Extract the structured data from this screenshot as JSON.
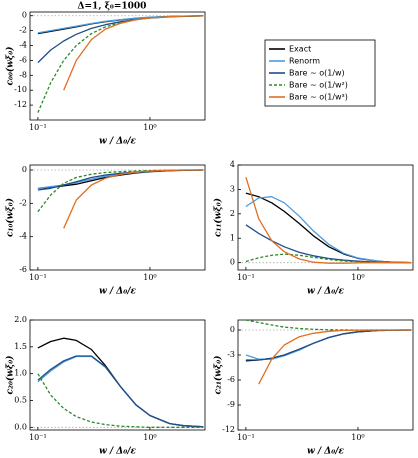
{
  "chart_data": [
    {
      "type": "line",
      "title": "Δ=1, ξ₀=1000",
      "y_label": "c₀₀(wξ₀)",
      "x_label": "w / Δ₀/ε",
      "x": [
        0.1,
        0.13,
        0.17,
        0.22,
        0.3,
        0.4,
        0.55,
        0.75,
        1,
        1.5,
        2,
        3
      ],
      "xlim": [
        0.085,
        3.1
      ],
      "xticks": [
        {
          "value": 0.1,
          "label": "10⁻¹"
        },
        {
          "value": 1,
          "label": "10⁰"
        }
      ],
      "xscale": "log",
      "ylim": [
        -14,
        0.5
      ],
      "yticks": [
        0,
        -2,
        -4,
        -6,
        -8,
        -10,
        -12
      ],
      "reference_line": 0,
      "series": [
        {
          "name": "Exact",
          "color": "#000000",
          "values": [
            -2.4,
            -2.1,
            -1.8,
            -1.5,
            -1.1,
            -0.8,
            -0.55,
            -0.35,
            -0.22,
            -0.1,
            -0.05,
            -0.02
          ]
        },
        {
          "name": "Renorm",
          "color": "#4a9be0",
          "values": [
            -2.3,
            -2.0,
            -1.7,
            -1.4,
            -1.05,
            -0.75,
            -0.52,
            -0.33,
            -0.2,
            -0.09,
            -0.05,
            -0.02
          ]
        },
        {
          "name": "Bare ~ o(1/w)",
          "color": "#1f4e8c",
          "values": [
            -6.3,
            -4.6,
            -3.4,
            -2.5,
            -1.7,
            -1.2,
            -0.8,
            -0.5,
            -0.32,
            -0.15,
            -0.08,
            -0.03
          ]
        },
        {
          "name": "Bare ~ o(1/w²)",
          "color": "#2a8a2a",
          "dash": true,
          "values": [
            -13,
            -9,
            -6,
            -4,
            -2.4,
            -1.5,
            -0.9,
            -0.5,
            -0.3,
            -0.12,
            -0.06,
            -0.02
          ]
        },
        {
          "name": "Bare ~ o(1/w³)",
          "color": "#e07020",
          "values": [
            null,
            null,
            -10,
            -6,
            -3.2,
            -1.8,
            -1.0,
            -0.55,
            -0.3,
            -0.12,
            -0.05,
            -0.02
          ]
        }
      ]
    },
    {
      "type": "line",
      "y_label": "c₁₀(wξ₀)",
      "x_label": "w / Δ₀/ε",
      "x": [
        0.1,
        0.13,
        0.17,
        0.22,
        0.3,
        0.4,
        0.55,
        0.75,
        1,
        1.5,
        2,
        3
      ],
      "xlim": [
        0.085,
        3.1
      ],
      "xticks": [
        {
          "value": 0.1,
          "label": "10⁻¹"
        },
        {
          "value": 1,
          "label": "10⁰"
        }
      ],
      "xscale": "log",
      "ylim": [
        -6,
        0.3
      ],
      "yticks": [
        0,
        -2,
        -4,
        -6
      ],
      "reference_line": 0,
      "series": [
        {
          "color": "#000000",
          "values": [
            -1.1,
            -1.05,
            -0.95,
            -0.85,
            -0.65,
            -0.45,
            -0.3,
            -0.18,
            -0.1,
            -0.04,
            -0.02,
            0
          ]
        },
        {
          "color": "#4a9be0",
          "values": [
            -1.1,
            -1.0,
            -0.9,
            -0.75,
            -0.55,
            -0.38,
            -0.25,
            -0.15,
            -0.08,
            -0.03,
            -0.01,
            0
          ]
        },
        {
          "color": "#1f4e8c",
          "values": [
            -1.2,
            -1.1,
            -0.9,
            -0.7,
            -0.45,
            -0.3,
            -0.2,
            -0.12,
            -0.07,
            -0.03,
            -0.01,
            0
          ]
        },
        {
          "color": "#2a8a2a",
          "dash": true,
          "values": [
            -2.5,
            -1.5,
            -0.8,
            -0.45,
            -0.25,
            -0.15,
            -0.1,
            -0.06,
            -0.03,
            -0.01,
            0,
            0
          ]
        },
        {
          "color": "#e07020",
          "values": [
            null,
            null,
            -3.5,
            -1.8,
            -0.9,
            -0.5,
            -0.25,
            -0.12,
            -0.06,
            -0.02,
            0,
            0
          ]
        }
      ]
    },
    {
      "type": "line",
      "y_label": "c₁₁(wξ₀)",
      "x_label": "w / Δ₀/ε",
      "x": [
        0.1,
        0.13,
        0.17,
        0.22,
        0.3,
        0.4,
        0.55,
        0.75,
        1,
        1.5,
        2,
        3
      ],
      "xlim": [
        0.085,
        3.1
      ],
      "xticks": [
        {
          "value": 0.1,
          "label": "10⁻¹"
        },
        {
          "value": 1,
          "label": "10⁰"
        }
      ],
      "xscale": "log",
      "ylim": [
        -0.3,
        4
      ],
      "yticks": [
        0,
        1,
        2,
        3,
        4
      ],
      "reference_line": 0,
      "series": [
        {
          "color": "#000000",
          "values": [
            2.85,
            2.7,
            2.45,
            2.1,
            1.6,
            1.1,
            0.65,
            0.35,
            0.18,
            0.06,
            0.02,
            0
          ]
        },
        {
          "color": "#4a9be0",
          "values": [
            2.3,
            2.65,
            2.7,
            2.45,
            1.9,
            1.3,
            0.75,
            0.38,
            0.19,
            0.06,
            0.02,
            0
          ]
        },
        {
          "color": "#1f4e8c",
          "values": [
            1.55,
            1.2,
            0.9,
            0.65,
            0.42,
            0.28,
            0.17,
            0.1,
            0.06,
            0.02,
            0.01,
            0
          ]
        },
        {
          "color": "#2a8a2a",
          "dash": true,
          "values": [
            0.05,
            0.2,
            0.3,
            0.35,
            0.3,
            0.22,
            0.13,
            0.07,
            0.04,
            0.01,
            0,
            0
          ]
        },
        {
          "color": "#e07020",
          "values": [
            3.5,
            1.8,
            0.9,
            0.45,
            0.15,
            0.02,
            -0.02,
            -0.02,
            -0.01,
            0,
            0,
            0
          ]
        }
      ]
    },
    {
      "type": "line",
      "y_label": "c₂₀(wξ₀)",
      "x_label": "w / Δ₀/ε",
      "x": [
        0.1,
        0.13,
        0.17,
        0.22,
        0.3,
        0.4,
        0.55,
        0.75,
        1,
        1.5,
        2,
        3
      ],
      "xlim": [
        0.085,
        3.1
      ],
      "xticks": [
        {
          "value": 0.1,
          "label": "10⁻¹"
        },
        {
          "value": 1,
          "label": "10⁰"
        }
      ],
      "xscale": "log",
      "ylim": [
        -0.05,
        2.0
      ],
      "yticks": [
        {
          "value": 0,
          "label": "0.0"
        },
        0.5,
        {
          "value": 1,
          "label": "1.0"
        },
        1.5,
        {
          "value": 2,
          "label": "2.0"
        }
      ],
      "reference_line": 0,
      "series": [
        {
          "color": "#000000",
          "values": [
            1.48,
            1.6,
            1.66,
            1.62,
            1.45,
            1.15,
            0.75,
            0.42,
            0.22,
            0.07,
            0.03,
            0.01
          ]
        },
        {
          "color": "#4a9be0",
          "values": [
            0.85,
            1.05,
            1.22,
            1.32,
            1.32,
            1.12,
            0.75,
            0.42,
            0.22,
            0.07,
            0.03,
            0.01
          ]
        },
        {
          "color": "#1f4e8c",
          "values": [
            0.88,
            1.08,
            1.24,
            1.33,
            1.33,
            1.13,
            0.75,
            0.42,
            0.22,
            0.07,
            0.03,
            0.01
          ]
        },
        {
          "color": "#2a8a2a",
          "dash": true,
          "values": [
            1.0,
            0.6,
            0.35,
            0.2,
            0.1,
            0.05,
            0.02,
            0.01,
            0,
            0,
            0,
            0
          ]
        }
      ]
    },
    {
      "type": "line",
      "y_label": "c₂₁(wξ₀)",
      "x_label": "w / Δ₀/ε",
      "x": [
        0.1,
        0.13,
        0.17,
        0.22,
        0.3,
        0.4,
        0.55,
        0.75,
        1,
        1.5,
        2,
        3
      ],
      "xlim": [
        0.085,
        3.1
      ],
      "xticks": [
        {
          "value": 0.1,
          "label": "10⁻¹"
        },
        {
          "value": 1,
          "label": "10⁰"
        }
      ],
      "xscale": "log",
      "ylim": [
        -12,
        1.2
      ],
      "yticks": [
        0,
        -3,
        -6,
        -9,
        -12
      ],
      "reference_line": 0,
      "series": [
        {
          "color": "#000000",
          "values": [
            -3.7,
            -3.6,
            -3.4,
            -3.0,
            -2.3,
            -1.6,
            -0.9,
            -0.45,
            -0.22,
            -0.06,
            -0.02,
            0
          ]
        },
        {
          "color": "#4a9be0",
          "values": [
            -3.0,
            -3.5,
            -3.5,
            -3.1,
            -2.4,
            -1.6,
            -0.9,
            -0.45,
            -0.22,
            -0.06,
            -0.02,
            0
          ]
        },
        {
          "color": "#1f4e8c",
          "values": [
            -3.6,
            -3.6,
            -3.4,
            -3.0,
            -2.3,
            -1.6,
            -0.9,
            -0.45,
            -0.22,
            -0.06,
            -0.02,
            0
          ]
        },
        {
          "color": "#2a8a2a",
          "dash": true,
          "values": [
            1.2,
            0.9,
            0.6,
            0.35,
            0.18,
            0.08,
            0.03,
            0.01,
            0,
            0,
            0,
            0
          ]
        },
        {
          "color": "#e07020",
          "values": [
            null,
            -6.5,
            -3.5,
            -1.8,
            -0.8,
            -0.4,
            -0.15,
            -0.05,
            -0.02,
            0,
            0,
            0
          ]
        }
      ]
    }
  ]
}
